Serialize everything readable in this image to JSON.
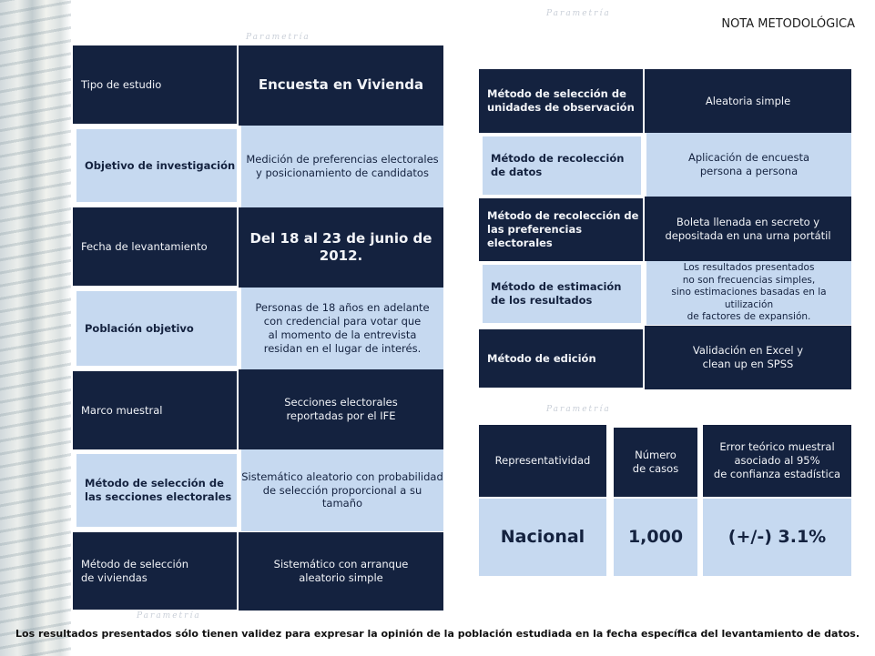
{
  "header": {
    "title": "NOTA METODOLÓGICA"
  },
  "left_rows": [
    {
      "label": "Tipo de estudio",
      "value": "Encuesta en Vivienda"
    },
    {
      "label": "Objetivo de investigación",
      "value": "Medición de preferencias electorales\ny posicionamiento de candidatos"
    },
    {
      "label": "Fecha de levantamiento",
      "value": "Del 18 al 23 de junio de 2012."
    },
    {
      "label": "Población objetivo",
      "value": "Personas de 18 años en adelante\ncon credencial para votar que\nal momento de la entrevista\nresidan en el lugar de interés."
    },
    {
      "label": "Marco muestral",
      "value": "Secciones electorales\nreportadas por el IFE"
    },
    {
      "label": "Método de selección de\nlas secciones electorales",
      "value": "Sistemático aleatorio con probabilidad\nde selección proporcional a su tamaño"
    },
    {
      "label": "Método de selección\nde viviendas",
      "value": "Sistemático con arranque\naleatorio simple"
    }
  ],
  "right_rows": [
    {
      "label": "Método de selección de\nunidades de observación",
      "value": "Aleatoria simple"
    },
    {
      "label": "Método de recolección\nde datos",
      "value": "Aplicación de encuesta\npersona a persona"
    },
    {
      "label": "Método de recolección de\nlas preferencias electorales",
      "value": "Boleta llenada en secreto y\ndepositada en una urna portátil"
    },
    {
      "label": "Método de estimación\nde los resultados",
      "value": "Los resultados presentados\nno son frecuencias simples,\nsino estimaciones basadas en la utilización\nde factores de expansión."
    },
    {
      "label": "Método de edición",
      "value": "Validación en Excel y\nclean up en SPSS"
    }
  ],
  "summary": {
    "headers": [
      "Representatividad",
      "Número\nde casos",
      "Error teórico muestral\nasociado al 95%\nde confianza estadística"
    ],
    "values": [
      "Nacional",
      "1,000",
      "(+/-) 3.1%"
    ]
  },
  "watermark": "Parametría",
  "footer": "Los resultados presentados sólo tienen validez para expresar la opinión de la población estudiada en la fecha específica del levantamiento de datos."
}
